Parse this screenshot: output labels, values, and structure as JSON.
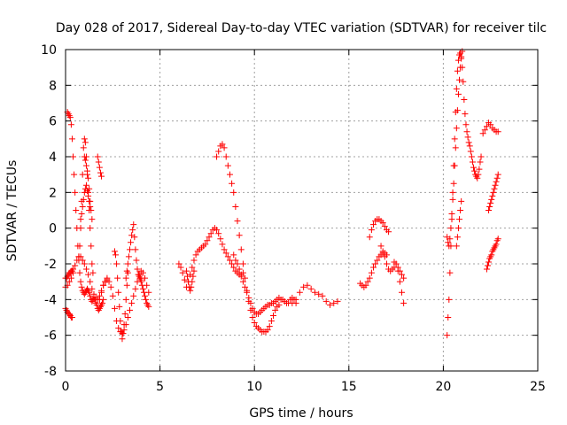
{
  "chart_data": {
    "type": "scatter",
    "title": "Day 028 of 2017, Sidereal Day-to-day VTEC variation (SDTVAR) for receiver tilc",
    "xlabel": "GPS time / hours",
    "ylabel": "SDTVAR / TECUs",
    "xlim": [
      0,
      25
    ],
    "ylim": [
      -8,
      10
    ],
    "xticks": [
      0,
      5,
      10,
      15,
      20,
      25
    ],
    "yticks": [
      -8,
      -6,
      -4,
      -2,
      0,
      2,
      4,
      6,
      8,
      10
    ],
    "grid": true,
    "marker": "+",
    "color": "#ff0000",
    "series": [
      {
        "name": "s01",
        "x": [
          0.0,
          0.1,
          0.2,
          0.3,
          0.4,
          0.5,
          0.6,
          0.7,
          0.8,
          0.9,
          1.0,
          1.1,
          1.2,
          1.3,
          1.4,
          1.5,
          1.6,
          1.7,
          1.8,
          1.9,
          2.0,
          2.1,
          2.2
        ],
        "y": [
          -3.3,
          -3.2,
          -3.0,
          -2.8,
          -2.5,
          -2.1,
          -1.8,
          -1.6,
          -1.6,
          -1.8,
          -2.0,
          -2.3,
          -2.6,
          -3.0,
          -3.4,
          -3.7,
          -3.9,
          -4.0,
          -3.8,
          -3.5,
          -3.2,
          -3.0,
          -2.9
        ]
      },
      {
        "name": "s02",
        "x": [
          0.0,
          0.05,
          0.1,
          0.15,
          0.2,
          0.25,
          0.3,
          0.35,
          0.4
        ],
        "y": [
          -2.8,
          -2.8,
          -2.7,
          -2.6,
          -2.5,
          -2.5,
          -2.4,
          -2.4,
          -2.3
        ]
      },
      {
        "name": "s03",
        "x": [
          0.0,
          0.05,
          0.1,
          0.15,
          0.2,
          0.25,
          0.3,
          0.35
        ],
        "y": [
          -4.5,
          -4.6,
          -4.7,
          -4.8,
          -4.8,
          -4.9,
          -5.0,
          -5.0
        ]
      },
      {
        "name": "s04",
        "x": [
          0.1,
          0.15,
          0.2,
          0.25,
          0.3,
          0.35,
          0.4,
          0.45,
          0.5,
          0.55,
          0.6,
          0.65,
          0.7,
          0.75,
          0.8,
          0.85,
          0.9,
          0.95,
          1.0,
          1.05,
          1.1,
          1.15,
          1.2,
          1.25,
          1.3,
          1.35,
          1.4,
          1.45,
          1.5,
          1.55,
          1.6,
          1.65,
          1.7,
          1.75,
          1.8,
          1.85,
          1.9,
          1.95,
          2.0
        ],
        "y": [
          6.5,
          6.4,
          6.3,
          6.2,
          5.8,
          5.0,
          4.0,
          3.0,
          2.0,
          1.0,
          0.0,
          -1.0,
          -1.8,
          -2.5,
          -3.0,
          -3.3,
          -3.5,
          -3.6,
          -3.7,
          -3.6,
          -3.5,
          -3.4,
          -3.5,
          -3.6,
          -3.8,
          -4.0,
          -4.1,
          -4.0,
          -3.9,
          -4.0,
          -4.2,
          -4.3,
          -4.5,
          -4.6,
          -4.5,
          -4.4,
          -4.3,
          -4.2,
          -4.0
        ]
      },
      {
        "name": "s05",
        "x": [
          0.7,
          0.75,
          0.8,
          0.85,
          0.9,
          0.95,
          1.0,
          1.05,
          1.1,
          1.15,
          1.2,
          1.25,
          1.3,
          1.35,
          1.4,
          1.45
        ],
        "y": [
          -1.6,
          -1.0,
          0.0,
          1.5,
          3.0,
          4.5,
          5.0,
          4.8,
          4.0,
          3.0,
          2.0,
          1.0,
          0.0,
          -1.0,
          -2.0,
          -2.5
        ]
      },
      {
        "name": "s06",
        "x": [
          1.0,
          1.05,
          1.1,
          1.15,
          1.2,
          1.25,
          1.3,
          1.35,
          1.4
        ],
        "y": [
          4.0,
          3.8,
          3.5,
          3.2,
          2.8,
          2.2,
          1.5,
          1.0,
          0.5
        ]
      },
      {
        "name": "s07",
        "x": [
          0.8,
          0.85,
          0.9,
          0.95,
          1.0,
          1.05,
          1.1,
          1.15,
          1.2,
          1.25,
          1.3
        ],
        "y": [
          0.5,
          0.8,
          1.2,
          1.6,
          2.0,
          2.2,
          2.4,
          2.1,
          1.8,
          1.5,
          1.2
        ]
      },
      {
        "name": "s08",
        "x": [
          1.7,
          1.75,
          1.8,
          1.85,
          1.9
        ],
        "y": [
          4.0,
          3.7,
          3.4,
          3.1,
          2.9
        ]
      },
      {
        "name": "s09",
        "x": [
          1.8,
          1.9,
          2.0,
          2.1,
          2.2,
          2.3,
          2.4,
          2.5,
          2.6,
          2.7,
          2.8,
          2.9,
          3.0,
          3.1,
          3.2,
          3.3,
          3.4,
          3.5,
          3.6,
          3.7,
          3.8,
          3.9,
          4.0,
          4.1,
          4.2,
          4.3,
          4.4
        ],
        "y": [
          -4.0,
          -3.6,
          -3.2,
          -3.0,
          -2.8,
          -3.0,
          -3.3,
          -3.8,
          -4.5,
          -5.2,
          -5.6,
          -5.8,
          -5.9,
          -5.7,
          -5.4,
          -5.0,
          -4.6,
          -4.2,
          -3.8,
          -3.4,
          -3.0,
          -2.6,
          -2.4,
          -2.5,
          -2.8,
          -3.2,
          -3.6
        ]
      },
      {
        "name": "s10",
        "x": [
          2.6,
          2.65,
          2.7,
          2.75,
          2.8,
          2.85,
          2.9,
          2.95,
          3.0,
          3.05,
          3.1,
          3.15,
          3.2,
          3.25,
          3.3
        ],
        "y": [
          -1.3,
          -1.5,
          -2.0,
          -2.8,
          -3.6,
          -4.4,
          -5.2,
          -5.8,
          -6.2,
          -5.9,
          -5.4,
          -4.8,
          -4.0,
          -3.2,
          -2.5
        ]
      },
      {
        "name": "s11",
        "x": [
          3.2,
          3.25,
          3.3,
          3.35,
          3.4,
          3.45,
          3.5,
          3.55,
          3.6,
          3.65,
          3.7,
          3.75,
          3.8,
          3.85,
          3.9,
          3.95,
          4.0
        ],
        "y": [
          -2.8,
          -2.4,
          -2.0,
          -1.6,
          -1.2,
          -0.8,
          -0.4,
          -0.1,
          0.2,
          -0.5,
          -1.2,
          -1.8,
          -2.3,
          -2.6,
          -2.7,
          -2.8,
          -2.9
        ]
      },
      {
        "name": "s12",
        "x": [
          3.9,
          3.95,
          4.0,
          4.05,
          4.1,
          4.15,
          4.2,
          4.25,
          4.3,
          4.35,
          4.4
        ],
        "y": [
          -2.6,
          -2.8,
          -3.0,
          -3.2,
          -3.4,
          -3.6,
          -3.8,
          -4.0,
          -4.2,
          -4.3,
          -4.4
        ]
      },
      {
        "name": "s13",
        "x": [
          6.0,
          6.1,
          6.2,
          6.3,
          6.4,
          6.5,
          6.6,
          6.7,
          6.8,
          6.9,
          7.0,
          7.1,
          7.2,
          7.3,
          7.4,
          7.5,
          7.6,
          7.7,
          7.8,
          7.9,
          8.0,
          8.1,
          8.2,
          8.3,
          8.4,
          8.5,
          8.6,
          8.7,
          8.8,
          8.9,
          9.0,
          9.1,
          9.2,
          9.3,
          9.4
        ],
        "y": [
          -2.0,
          -2.2,
          -2.5,
          -2.9,
          -3.3,
          -3.0,
          -2.6,
          -2.2,
          -1.8,
          -1.5,
          -1.3,
          -1.2,
          -1.1,
          -1.0,
          -0.9,
          -0.7,
          -0.5,
          -0.3,
          -0.1,
          0.0,
          -0.1,
          -0.3,
          -0.6,
          -0.9,
          -1.2,
          -1.4,
          -1.6,
          -1.8,
          -2.0,
          -2.2,
          -2.4,
          -2.5,
          -2.6,
          -2.6,
          -2.5
        ]
      },
      {
        "name": "s14",
        "x": [
          6.4,
          6.45,
          6.5,
          6.55,
          6.6,
          6.65,
          6.7,
          6.75,
          6.8
        ],
        "y": [
          -2.4,
          -2.7,
          -3.0,
          -3.3,
          -3.5,
          -3.3,
          -3.0,
          -2.7,
          -2.4
        ]
      },
      {
        "name": "s15",
        "x": [
          8.0,
          8.1,
          8.2,
          8.3,
          8.4,
          8.5,
          8.6,
          8.7,
          8.8,
          8.9,
          9.0,
          9.1,
          9.2,
          9.3,
          9.4,
          9.5,
          9.6,
          9.7,
          9.8,
          9.9,
          10.0,
          10.1,
          10.2,
          10.3,
          10.4,
          10.5,
          10.6,
          10.7,
          10.8,
          10.9,
          11.0,
          11.1,
          11.2,
          11.3
        ],
        "y": [
          4.0,
          4.3,
          4.6,
          4.7,
          4.5,
          4.0,
          3.5,
          3.0,
          2.5,
          2.0,
          1.2,
          0.4,
          -0.4,
          -1.2,
          -2.0,
          -2.8,
          -3.5,
          -4.1,
          -4.6,
          -5.0,
          -5.3,
          -5.5,
          -5.6,
          -5.7,
          -5.8,
          -5.8,
          -5.8,
          -5.7,
          -5.5,
          -5.2,
          -4.9,
          -4.6,
          -4.4,
          -4.3
        ]
      },
      {
        "name": "s16",
        "x": [
          8.9,
          9.0,
          9.1,
          9.2,
          9.3,
          9.4,
          9.5,
          9.6,
          9.7,
          9.8,
          9.9,
          10.0,
          10.1,
          10.2,
          10.3,
          10.4,
          10.5,
          10.6,
          10.7,
          10.8,
          10.9,
          11.0,
          11.1,
          11.2,
          11.3,
          11.4,
          11.5,
          11.6,
          11.7,
          11.8,
          11.9,
          12.0,
          12.1,
          12.2
        ],
        "y": [
          -1.5,
          -1.8,
          -2.0,
          -2.3,
          -2.7,
          -3.0,
          -3.3,
          -3.6,
          -3.9,
          -4.2,
          -4.5,
          -4.7,
          -4.8,
          -4.8,
          -4.7,
          -4.6,
          -4.5,
          -4.4,
          -4.3,
          -4.3,
          -4.2,
          -4.2,
          -4.1,
          -4.0,
          -3.9,
          -4.0,
          -4.0,
          -4.1,
          -4.2,
          -4.2,
          -4.0,
          -3.9,
          -4.0,
          -4.2
        ]
      },
      {
        "name": "s17",
        "x": [
          12.0,
          12.2,
          12.4,
          12.6,
          12.8,
          13.0,
          13.2,
          13.4,
          13.6,
          13.8,
          14.0,
          14.2,
          14.4
        ],
        "y": [
          -4.2,
          -4.0,
          -3.6,
          -3.3,
          -3.2,
          -3.4,
          -3.6,
          -3.7,
          -3.8,
          -4.1,
          -4.3,
          -4.2,
          -4.1
        ]
      },
      {
        "name": "s18",
        "x": [
          15.6,
          15.7,
          15.8,
          15.9,
          16.0,
          16.1,
          16.2,
          16.3,
          16.4,
          16.5,
          16.6,
          16.7,
          16.8,
          16.9,
          17.0
        ],
        "y": [
          -3.1,
          -3.2,
          -3.3,
          -3.2,
          -3.0,
          -2.8,
          -2.5,
          -2.2,
          -2.0,
          -1.8,
          -1.6,
          -1.5,
          -1.4,
          -1.4,
          -1.5
        ]
      },
      {
        "name": "s19",
        "x": [
          16.1,
          16.2,
          16.3,
          16.4,
          16.5,
          16.6,
          16.7,
          16.8,
          16.9,
          17.0,
          17.1
        ],
        "y": [
          -0.5,
          -0.1,
          0.2,
          0.4,
          0.5,
          0.5,
          0.4,
          0.3,
          0.1,
          -0.1,
          -0.2
        ]
      },
      {
        "name": "s20",
        "x": [
          16.7,
          16.8,
          16.9,
          17.0,
          17.1,
          17.2,
          17.3,
          17.4,
          17.5,
          17.6,
          17.7,
          17.8,
          17.9
        ],
        "y": [
          -1.0,
          -1.3,
          -1.6,
          -2.0,
          -2.3,
          -2.4,
          -2.3,
          -2.2,
          -2.0,
          -2.4,
          -3.0,
          -3.6,
          -4.2
        ]
      },
      {
        "name": "s21",
        "x": [
          17.4,
          17.5,
          17.6,
          17.7,
          17.8,
          17.9
        ],
        "y": [
          -1.9,
          -2.0,
          -2.2,
          -2.4,
          -2.6,
          -2.8
        ]
      },
      {
        "name": "s22",
        "x": [
          20.2,
          20.25,
          20.3,
          20.35,
          20.4,
          20.45,
          20.5,
          20.55,
          20.6,
          20.65,
          20.7,
          20.75,
          20.8,
          20.85,
          20.9,
          20.95,
          21.0,
          21.05,
          21.1,
          21.15,
          21.2,
          21.25,
          21.3,
          21.35,
          21.4,
          21.45,
          21.5,
          21.55,
          21.6,
          21.65,
          21.7,
          21.75,
          21.8,
          21.85,
          21.9,
          21.95,
          22.0
        ],
        "y": [
          -6.0,
          -5.0,
          -4.0,
          -2.5,
          -1.0,
          0.5,
          2.0,
          3.5,
          5.0,
          6.5,
          7.8,
          8.8,
          9.4,
          9.7,
          9.8,
          9.6,
          9.0,
          8.2,
          7.2,
          6.4,
          5.8,
          5.4,
          5.1,
          4.8,
          4.6,
          4.3,
          4.0,
          3.7,
          3.4,
          3.2,
          3.0,
          2.9,
          2.8,
          3.0,
          3.3,
          3.7,
          4.0
        ]
      },
      {
        "name": "s23",
        "x": [
          20.2,
          20.25,
          20.3,
          20.35,
          20.4,
          20.45,
          20.5,
          20.55,
          20.6,
          20.65,
          20.7,
          20.75,
          20.8,
          20.85,
          20.9,
          20.95,
          21.0
        ],
        "y": [
          -0.5,
          -0.8,
          -1.0,
          -0.6,
          0.0,
          0.8,
          1.6,
          2.5,
          3.5,
          4.5,
          5.6,
          6.6,
          7.5,
          8.3,
          9.0,
          9.5,
          9.9
        ]
      },
      {
        "name": "s24",
        "x": [
          20.7,
          20.75,
          20.8,
          20.85,
          20.9,
          20.95
        ],
        "y": [
          -1.0,
          -0.5,
          0.0,
          0.5,
          1.0,
          1.5
        ]
      },
      {
        "name": "s25",
        "x": [
          22.1,
          22.2,
          22.3,
          22.4,
          22.5,
          22.6,
          22.7,
          22.8,
          22.9
        ],
        "y": [
          5.3,
          5.5,
          5.7,
          5.9,
          5.8,
          5.6,
          5.5,
          5.4,
          5.4
        ]
      },
      {
        "name": "s26",
        "x": [
          22.3,
          22.35,
          22.4,
          22.45,
          22.5,
          22.55,
          22.6,
          22.65,
          22.7,
          22.75,
          22.8,
          22.85,
          22.9
        ],
        "y": [
          -2.3,
          -2.1,
          -1.9,
          -1.7,
          -1.6,
          -1.5,
          -1.3,
          -1.2,
          -1.1,
          -1.0,
          -0.9,
          -0.7,
          -0.6
        ]
      },
      {
        "name": "s27",
        "x": [
          22.4,
          22.45,
          22.5,
          22.55,
          22.6,
          22.65,
          22.7,
          22.75,
          22.8,
          22.85,
          22.9
        ],
        "y": [
          1.0,
          1.2,
          1.4,
          1.6,
          1.8,
          2.0,
          2.2,
          2.4,
          2.6,
          2.8,
          3.0
        ]
      }
    ]
  }
}
